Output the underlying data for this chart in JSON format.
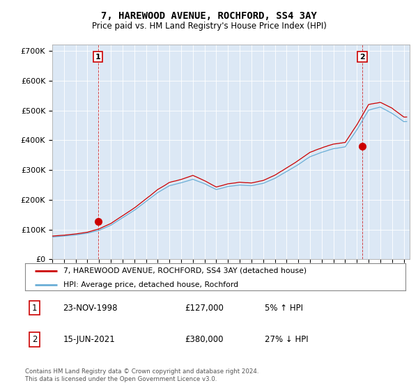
{
  "title_line1": "7, HAREWOOD AVENUE, ROCHFORD, SS4 3AY",
  "title_line2": "Price paid vs. HM Land Registry's House Price Index (HPI)",
  "background_color": "#ffffff",
  "plot_bg_color": "#dce8f5",
  "grid_color": "#ffffff",
  "red_line_color": "#cc0000",
  "blue_line_color": "#6aaed6",
  "ylim": [
    0,
    720000
  ],
  "yticks": [
    0,
    100000,
    200000,
    300000,
    400000,
    500000,
    600000,
    700000
  ],
  "ytick_labels": [
    "£0",
    "£100K",
    "£200K",
    "£300K",
    "£400K",
    "£500K",
    "£600K",
    "£700K"
  ],
  "purchase1_x": 1998.9,
  "purchase1_value": 127000,
  "purchase1_label": "1",
  "purchase2_x": 2021.45,
  "purchase2_value": 380000,
  "purchase2_label": "2",
  "legend_entries": [
    "7, HAREWOOD AVENUE, ROCHFORD, SS4 3AY (detached house)",
    "HPI: Average price, detached house, Rochford"
  ],
  "table_rows": [
    [
      "1",
      "23-NOV-1998",
      "£127,000",
      "5% ↑ HPI"
    ],
    [
      "2",
      "15-JUN-2021",
      "£380,000",
      "27% ↓ HPI"
    ]
  ],
  "footnote": "Contains HM Land Registry data © Crown copyright and database right 2024.\nThis data is licensed under the Open Government Licence v3.0.",
  "xlim_left": 1995.0,
  "xlim_right": 2025.5
}
